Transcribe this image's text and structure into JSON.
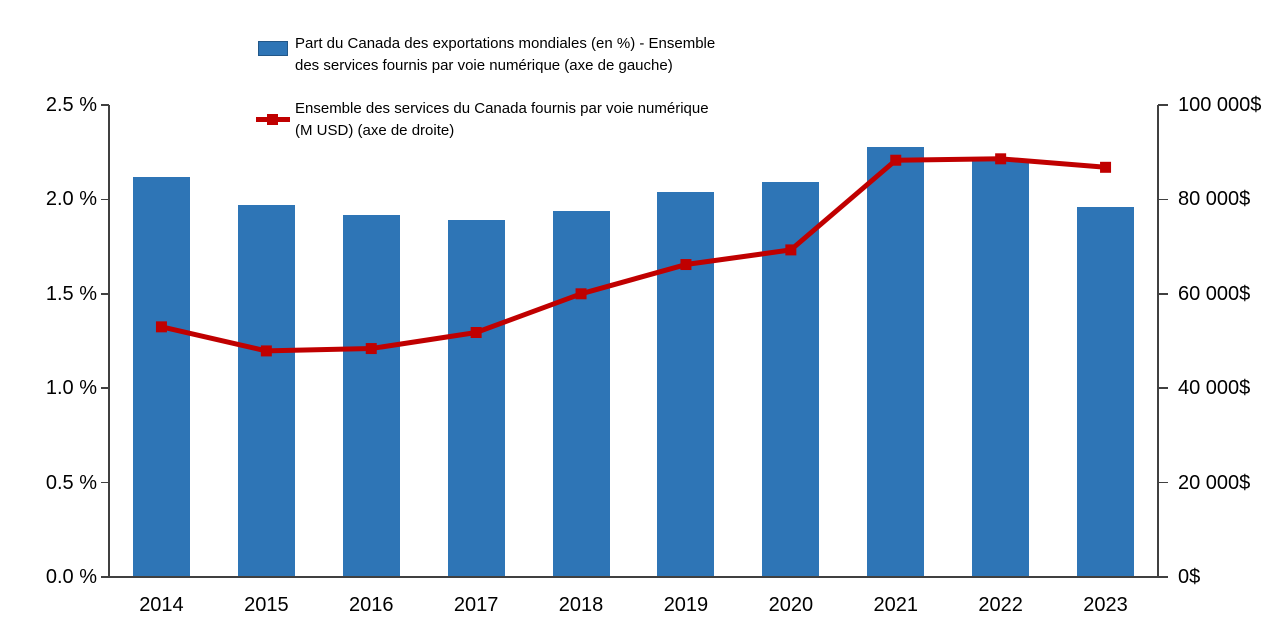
{
  "chart_data": {
    "type": "bar",
    "subtype": "combo-bar-line-dual-axis",
    "categories": [
      "2014",
      "2015",
      "2016",
      "2017",
      "2018",
      "2019",
      "2020",
      "2021",
      "2022",
      "2023"
    ],
    "series": [
      {
        "name": "Part du Canada des exportations mondiales (en %) - Ensemble des services fournis par voie numérique (axe de gauche)",
        "type": "bar",
        "axis": "left",
        "color": "#2E75B6",
        "values": [
          2.12,
          1.97,
          1.92,
          1.89,
          1.94,
          2.04,
          2.09,
          2.28,
          2.21,
          1.96
        ]
      },
      {
        "name": "Ensemble des services du Canada fournis par voie numérique (M USD) (axe de droite)",
        "type": "line",
        "axis": "right",
        "color": "#C00000",
        "values": [
          53000,
          47900,
          48400,
          51800,
          60000,
          66200,
          69300,
          88300,
          88600,
          86800
        ]
      }
    ],
    "left_axis": {
      "min": 0,
      "max": 2.5,
      "tick_step": 0.5,
      "tick_labels": [
        "0.0 %",
        "0.5 %",
        "1.0 %",
        "1.5 %",
        "2.0 %",
        "2.5 %"
      ]
    },
    "right_axis": {
      "min": 0,
      "max": 100000,
      "tick_step": 20000,
      "tick_labels": [
        "0$",
        "20 000$",
        "40 000$",
        "60 000$",
        "80 000$",
        "100 000$"
      ]
    },
    "legend": [
      {
        "marker": "bar-swatch",
        "color": "#2E75B6",
        "lines": [
          "Part du Canada des exportations mondiales (en %) - Ensemble",
          "des services fournis par voie numérique (axe de gauche)"
        ]
      },
      {
        "marker": "line-with-square-marker",
        "color": "#C00000",
        "lines": [
          "Ensemble des services du Canada fournis par voie numérique",
          "(M USD) (axe de droite)"
        ]
      }
    ],
    "grid": false,
    "legend_position": "top-left-inside",
    "title": ""
  }
}
